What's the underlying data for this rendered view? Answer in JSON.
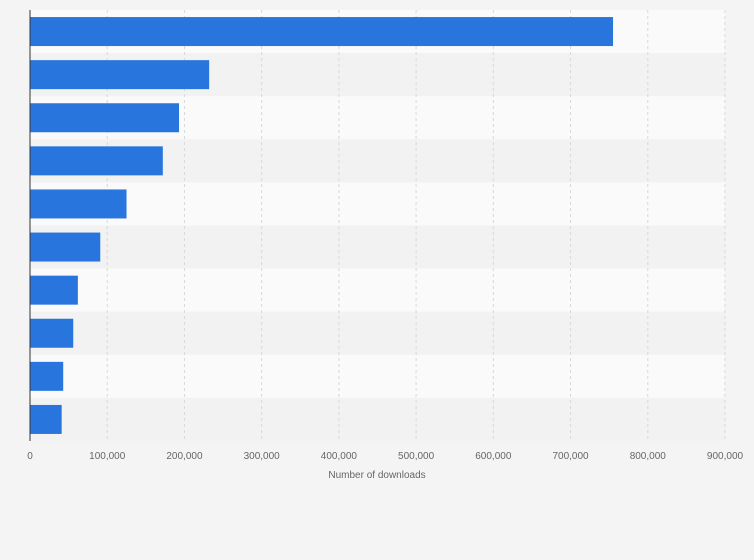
{
  "chart_data": {
    "type": "bar",
    "orientation": "horizontal",
    "title": "",
    "xlabel": "Number of downloads",
    "ylabel": "",
    "categories": [
      "",
      "",
      "",
      "",
      "",
      "",
      "",
      "",
      "",
      ""
    ],
    "values": [
      755000,
      232000,
      193000,
      172000,
      125000,
      91000,
      62000,
      56000,
      43000,
      41000
    ],
    "xlim": [
      0,
      900000
    ],
    "ticks": [
      0,
      100000,
      200000,
      300000,
      400000,
      500000,
      600000,
      700000,
      800000,
      900000
    ],
    "tick_labels": [
      "0",
      "100,000",
      "200,000",
      "300,000",
      "400,000",
      "500,000",
      "600,000",
      "700,000",
      "800,000",
      "900,000"
    ],
    "grid": true,
    "legend": "none"
  },
  "colors": {
    "bar": "#2876dd",
    "band_light": "#fafafa",
    "band_dark": "#f2f2f2",
    "grid": "#d8d8d8",
    "axis": "#333333",
    "background": "#f4f4f4"
  }
}
